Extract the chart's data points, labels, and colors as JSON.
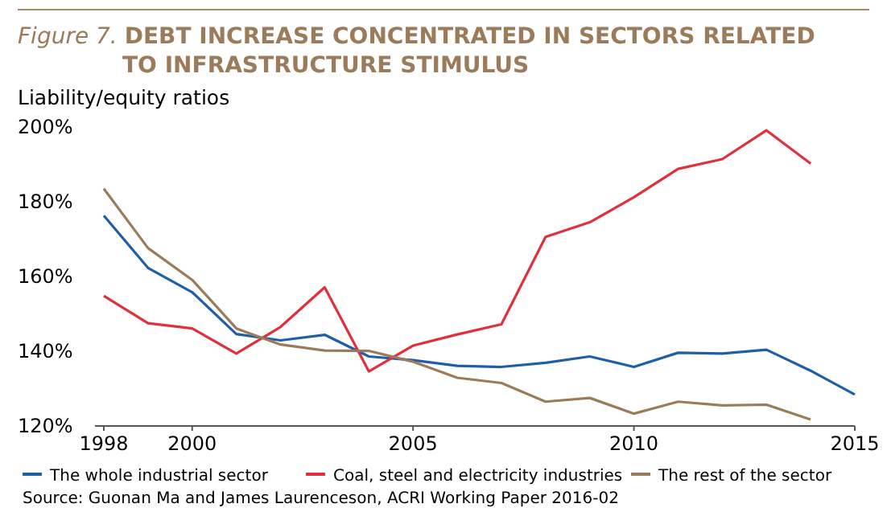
{
  "chart_data": {
    "type": "line",
    "title": "Figure 7. DEBT INCREASE CONCENTRATED IN SECTORS RELATED TO INFRASTRUCTURE STIMULUS",
    "ylabel": "Liability/equity ratios",
    "x": [
      1998,
      1999,
      2000,
      2001,
      2002,
      2003,
      2004,
      2005,
      2006,
      2007,
      2008,
      2009,
      2010,
      2011,
      2012,
      2013,
      2014,
      2015
    ],
    "series": [
      {
        "name": "The whole industrial sector",
        "color": "#1f5fa8",
        "values": [
          176.3,
          162.3,
          155.8,
          144.6,
          142.9,
          144.4,
          138.6,
          137.6,
          136.1,
          135.8,
          136.9,
          138.6,
          135.8,
          139.6,
          139.4,
          140.4,
          134.8,
          128.4
        ]
      },
      {
        "name": "Coal, steel and electricity industries",
        "color": "#e0303c",
        "values": [
          154.8,
          147.5,
          146.1,
          139.4,
          146.5,
          157.1,
          134.6,
          141.5,
          144.5,
          147.2,
          170.6,
          174.5,
          181.2,
          188.8,
          191.4,
          199.1,
          190.2,
          null
        ]
      },
      {
        "name": "The rest of the sector",
        "color": "#9c7b5a",
        "values": [
          183.5,
          167.6,
          159.1,
          146.1,
          141.8,
          140.2,
          140.1,
          137.2,
          132.9,
          131.5,
          126.5,
          127.5,
          123.3,
          126.5,
          125.5,
          125.7,
          121.7,
          null
        ]
      }
    ],
    "xlim": [
      1997.8,
      2015
    ],
    "xticks": [
      1998,
      2000,
      2005,
      2010,
      2015
    ],
    "ylim": [
      120,
      200
    ],
    "yticks": [
      {
        "value": 120,
        "label": "120%"
      },
      {
        "value": 140,
        "label": "140%"
      },
      {
        "value": 160,
        "label": "160%"
      },
      {
        "value": 180,
        "label": "180%"
      },
      {
        "value": 200,
        "label": "200%"
      }
    ],
    "grid": false,
    "legend": "bottom",
    "marker": "none",
    "line_style": "solid",
    "annotations": [
      "Source: Guonan Ma and James Laurenceson, ACRI Working Paper 2016-02"
    ]
  }
}
